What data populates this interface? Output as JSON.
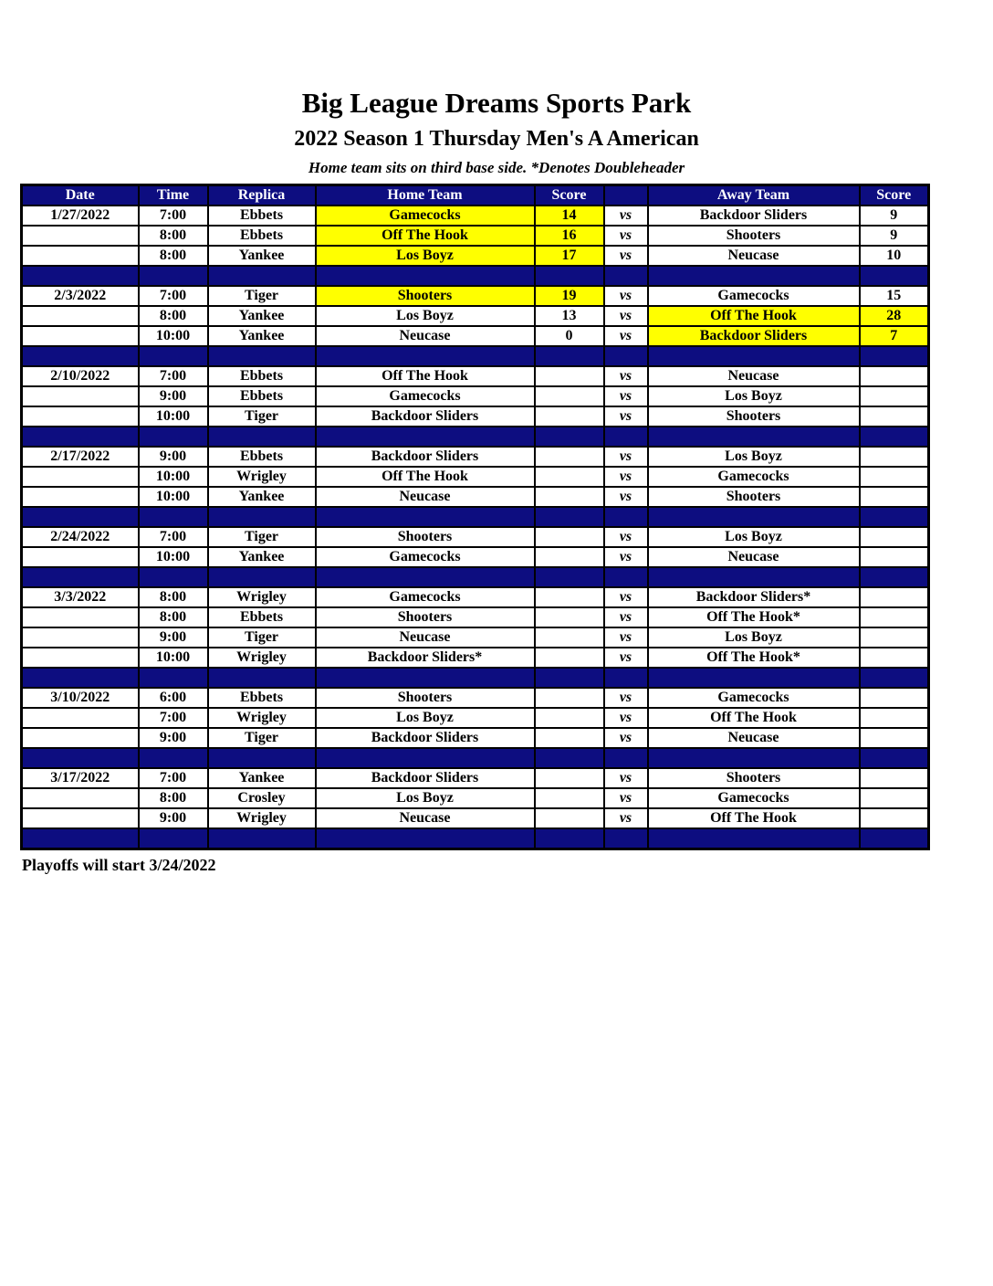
{
  "page": {
    "title": "Big League Dreams Sports Park",
    "subtitle": "2022 Season 1 Thursday Men's A American",
    "note": "Home team sits on third base side.  *Denotes Doubleheader",
    "footer": "Playoffs will start 3/24/2022"
  },
  "colors": {
    "navy": "#0d0d80",
    "yellow": "#ffff00",
    "header_text": "#ffffff",
    "body_text": "#000000"
  },
  "table": {
    "columns": [
      "Date",
      "Time",
      "Replica",
      "Home Team",
      "Score",
      "",
      "Away Team",
      "Score"
    ],
    "vs_label": "vs",
    "blocks": [
      {
        "rows": [
          {
            "date": "1/27/2022",
            "time": "7:00",
            "replica": "Ebbets",
            "home": "Gamecocks",
            "home_score": "14",
            "away": "Backdoor Sliders",
            "away_score": "9",
            "home_win": true,
            "away_win": false
          },
          {
            "date": "",
            "time": "8:00",
            "replica": "Ebbets",
            "home": "Off The Hook",
            "home_score": "16",
            "away": "Shooters",
            "away_score": "9",
            "home_win": true,
            "away_win": false
          },
          {
            "date": "",
            "time": "8:00",
            "replica": "Yankee",
            "home": "Los Boyz",
            "home_score": "17",
            "away": "Neucase",
            "away_score": "10",
            "home_win": true,
            "away_win": false
          }
        ]
      },
      {
        "rows": [
          {
            "date": "2/3/2022",
            "time": "7:00",
            "replica": "Tiger",
            "home": "Shooters",
            "home_score": "19",
            "away": "Gamecocks",
            "away_score": "15",
            "home_win": true,
            "away_win": false
          },
          {
            "date": "",
            "time": "8:00",
            "replica": "Yankee",
            "home": "Los Boyz",
            "home_score": "13",
            "away": "Off The Hook",
            "away_score": "28",
            "home_win": false,
            "away_win": true
          },
          {
            "date": "",
            "time": "10:00",
            "replica": "Yankee",
            "home": "Neucase",
            "home_score": "0",
            "away": "Backdoor Sliders",
            "away_score": "7",
            "home_win": false,
            "away_win": true
          }
        ]
      },
      {
        "rows": [
          {
            "date": "2/10/2022",
            "time": "7:00",
            "replica": "Ebbets",
            "home": "Off The Hook",
            "home_score": "",
            "away": "Neucase",
            "away_score": "",
            "home_win": false,
            "away_win": false
          },
          {
            "date": "",
            "time": "9:00",
            "replica": "Ebbets",
            "home": "Gamecocks",
            "home_score": "",
            "away": "Los Boyz",
            "away_score": "",
            "home_win": false,
            "away_win": false
          },
          {
            "date": "",
            "time": "10:00",
            "replica": "Tiger",
            "home": "Backdoor Sliders",
            "home_score": "",
            "away": "Shooters",
            "away_score": "",
            "home_win": false,
            "away_win": false
          }
        ]
      },
      {
        "rows": [
          {
            "date": "2/17/2022",
            "time": "9:00",
            "replica": "Ebbets",
            "home": "Backdoor Sliders",
            "home_score": "",
            "away": "Los Boyz",
            "away_score": "",
            "home_win": false,
            "away_win": false
          },
          {
            "date": "",
            "time": "10:00",
            "replica": "Wrigley",
            "home": "Off The Hook",
            "home_score": "",
            "away": "Gamecocks",
            "away_score": "",
            "home_win": false,
            "away_win": false
          },
          {
            "date": "",
            "time": "10:00",
            "replica": "Yankee",
            "home": "Neucase",
            "home_score": "",
            "away": "Shooters",
            "away_score": "",
            "home_win": false,
            "away_win": false
          }
        ]
      },
      {
        "rows": [
          {
            "date": "2/24/2022",
            "time": "7:00",
            "replica": "Tiger",
            "home": "Shooters",
            "home_score": "",
            "away": "Los Boyz",
            "away_score": "",
            "home_win": false,
            "away_win": false
          },
          {
            "date": "",
            "time": "10:00",
            "replica": "Yankee",
            "home": "Gamecocks",
            "home_score": "",
            "away": "Neucase",
            "away_score": "",
            "home_win": false,
            "away_win": false
          }
        ]
      },
      {
        "rows": [
          {
            "date": "3/3/2022",
            "time": "8:00",
            "replica": "Wrigley",
            "home": "Gamecocks",
            "home_score": "",
            "away": "Backdoor Sliders*",
            "away_score": "",
            "home_win": false,
            "away_win": false
          },
          {
            "date": "",
            "time": "8:00",
            "replica": "Ebbets",
            "home": "Shooters",
            "home_score": "",
            "away": "Off The Hook*",
            "away_score": "",
            "home_win": false,
            "away_win": false
          },
          {
            "date": "",
            "time": "9:00",
            "replica": "Tiger",
            "home": "Neucase",
            "home_score": "",
            "away": "Los Boyz",
            "away_score": "",
            "home_win": false,
            "away_win": false
          },
          {
            "date": "",
            "time": "10:00",
            "replica": "Wrigley",
            "home": "Backdoor Sliders*",
            "home_score": "",
            "away": "Off The Hook*",
            "away_score": "",
            "home_win": false,
            "away_win": false
          }
        ]
      },
      {
        "rows": [
          {
            "date": "3/10/2022",
            "time": "6:00",
            "replica": "Ebbets",
            "home": "Shooters",
            "home_score": "",
            "away": "Gamecocks",
            "away_score": "",
            "home_win": false,
            "away_win": false
          },
          {
            "date": "",
            "time": "7:00",
            "replica": "Wrigley",
            "home": "Los Boyz",
            "home_score": "",
            "away": "Off The Hook",
            "away_score": "",
            "home_win": false,
            "away_win": false
          },
          {
            "date": "",
            "time": "9:00",
            "replica": "Tiger",
            "home": "Backdoor Sliders",
            "home_score": "",
            "away": "Neucase",
            "away_score": "",
            "home_win": false,
            "away_win": false
          }
        ]
      },
      {
        "rows": [
          {
            "date": "3/17/2022",
            "time": "7:00",
            "replica": "Yankee",
            "home": "Backdoor Sliders",
            "home_score": "",
            "away": "Shooters",
            "away_score": "",
            "home_win": false,
            "away_win": false
          },
          {
            "date": "",
            "time": "8:00",
            "replica": "Crosley",
            "home": "Los Boyz",
            "home_score": "",
            "away": "Gamecocks",
            "away_score": "",
            "home_win": false,
            "away_win": false
          },
          {
            "date": "",
            "time": "9:00",
            "replica": "Wrigley",
            "home": "Neucase",
            "home_score": "",
            "away": "Off The Hook",
            "away_score": "",
            "home_win": false,
            "away_win": false
          }
        ]
      }
    ]
  }
}
